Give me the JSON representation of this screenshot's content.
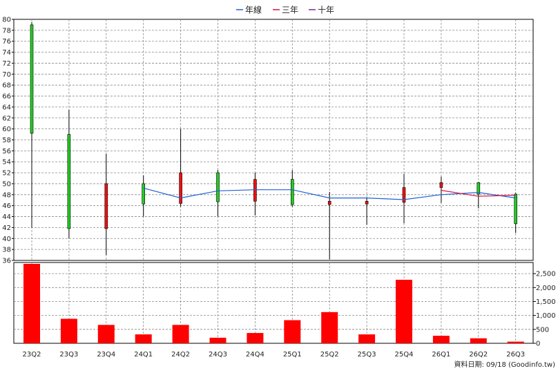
{
  "legend": [
    {
      "label": "年線",
      "color": "#1f5fd6"
    },
    {
      "label": "三年",
      "color": "#d6143a"
    },
    {
      "label": "十年",
      "color": "#7a2a8a"
    }
  ],
  "footer": "資料日期: 09/18  (Goodinfo.tw)",
  "colors": {
    "up": "#22cc22",
    "down": "#ee1111",
    "volume": "#ff0000",
    "grid": "#888888"
  },
  "chart_data": [
    {
      "type": "candlestick",
      "categories": [
        "23Q2",
        "23Q3",
        "23Q4",
        "24Q1",
        "24Q2",
        "24Q3",
        "24Q4",
        "25Q1",
        "25Q2",
        "25Q3",
        "25Q4",
        "26Q1",
        "26Q2",
        "26Q3"
      ],
      "ylim": [
        36,
        80
      ],
      "yticks": [
        36,
        38,
        40,
        42,
        44,
        46,
        48,
        50,
        52,
        54,
        56,
        58,
        60,
        62,
        64,
        66,
        68,
        70,
        72,
        74,
        76,
        78,
        80
      ],
      "grid": true,
      "legend_position": "top-center",
      "series": [
        {
          "name": "price",
          "ohlc": [
            {
              "o": 59.2,
              "h": 79.5,
              "l": 42.0,
              "c": 79.0
            },
            {
              "o": 41.8,
              "h": 63.5,
              "l": 40.0,
              "c": 59.0
            },
            {
              "o": 50.0,
              "h": 55.5,
              "l": 37.0,
              "c": 41.8
            },
            {
              "o": 46.3,
              "h": 51.5,
              "l": 44.0,
              "c": 50.0
            },
            {
              "o": 52.0,
              "h": 60.0,
              "l": 45.8,
              "c": 46.4
            },
            {
              "o": 46.7,
              "h": 52.5,
              "l": 44.0,
              "c": 52.0
            },
            {
              "o": 50.8,
              "h": 52.0,
              "l": 44.2,
              "c": 46.8
            },
            {
              "o": 46.2,
              "h": 52.5,
              "l": 45.8,
              "c": 50.8
            },
            {
              "o": 46.8,
              "h": 48.5,
              "l": 36.2,
              "c": 46.2
            },
            {
              "o": 46.8,
              "h": 47.5,
              "l": 42.5,
              "c": 46.3
            },
            {
              "o": 49.3,
              "h": 51.8,
              "l": 42.8,
              "c": 46.6
            },
            {
              "o": 50.2,
              "h": 51.3,
              "l": 46.5,
              "c": 49.3
            },
            {
              "o": 48.1,
              "h": 50.3,
              "l": 45.5,
              "c": 50.2
            },
            {
              "o": 42.7,
              "h": 48.3,
              "l": 41.0,
              "c": 48.1
            }
          ]
        },
        {
          "name": "年線",
          "values": [
            null,
            null,
            null,
            49.2,
            47.4,
            48.7,
            48.9,
            48.9,
            47.4,
            47.4,
            47.1,
            48.0,
            48.4,
            47.4
          ]
        },
        {
          "name": "三年",
          "values": [
            null,
            null,
            null,
            null,
            null,
            null,
            null,
            null,
            null,
            null,
            null,
            48.8,
            47.7,
            47.9
          ]
        },
        {
          "name": "十年",
          "values": [
            null,
            null,
            null,
            null,
            null,
            null,
            null,
            null,
            null,
            null,
            null,
            null,
            null,
            null
          ]
        }
      ]
    },
    {
      "type": "bar",
      "categories": [
        "23Q2",
        "23Q3",
        "23Q4",
        "24Q1",
        "24Q2",
        "24Q3",
        "24Q4",
        "25Q1",
        "25Q2",
        "25Q3",
        "25Q4",
        "26Q1",
        "26Q2",
        "26Q3"
      ],
      "values": [
        2850,
        880,
        660,
        320,
        660,
        200,
        370,
        830,
        1120,
        320,
        2280,
        270,
        180,
        60
      ],
      "ylim": [
        0,
        2900
      ],
      "yticks": [
        0,
        500,
        1000,
        1500,
        2000,
        2500
      ],
      "ytick_labels": [
        "0",
        "500",
        "1,000",
        "1,500",
        "2,000",
        "2,500"
      ],
      "grid": true
    }
  ]
}
